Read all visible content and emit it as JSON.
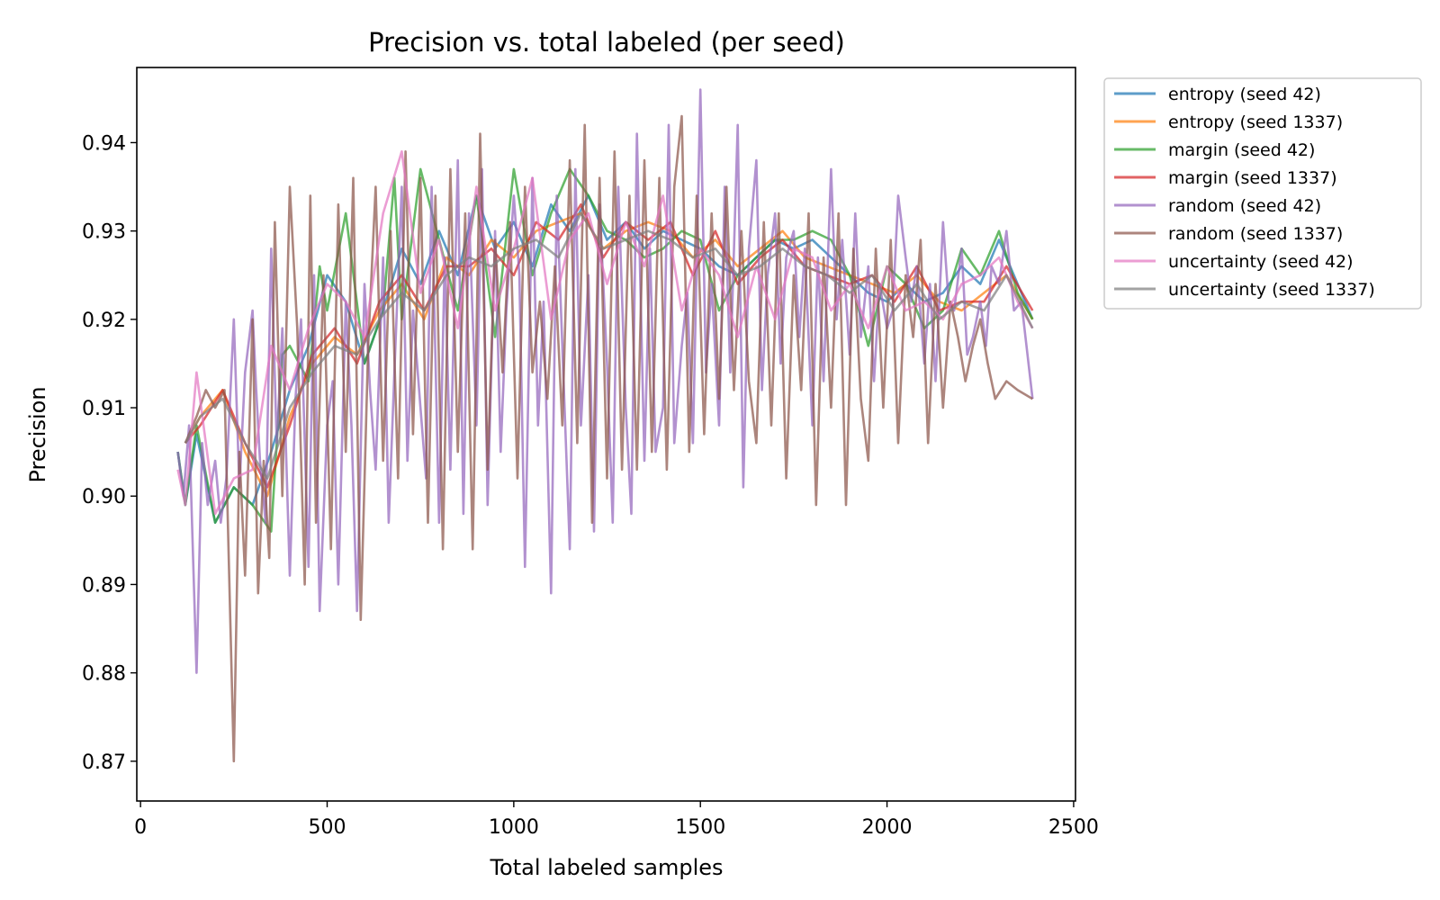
{
  "chart_data": {
    "type": "line",
    "title": "Precision vs. total labeled (per seed)",
    "xlabel": "Total labeled samples",
    "ylabel": "Precision",
    "xlim": [
      -10,
      2505
    ],
    "ylim": [
      0.8655,
      0.9485
    ],
    "xticks": [
      0,
      500,
      1000,
      1500,
      2000,
      2500
    ],
    "yticks": [
      0.87,
      0.88,
      0.89,
      0.9,
      0.91,
      0.92,
      0.93,
      0.94
    ],
    "ytick_format": 2,
    "grid": false,
    "legend_position": "outside-right",
    "series": [
      {
        "name": "entropy (seed 42)",
        "color": "#1f77b4",
        "x": [
          100,
          120,
          150,
          200,
          250,
          300,
          350,
          400,
          450,
          500,
          550,
          600,
          650,
          700,
          750,
          800,
          850,
          900,
          950,
          1000,
          1050,
          1100,
          1150,
          1200,
          1250,
          1300,
          1350,
          1400,
          1450,
          1500,
          1550,
          1600,
          1650,
          1700,
          1750,
          1800,
          1850,
          1900,
          1950,
          2000,
          2050,
          2100,
          2150,
          2200,
          2250,
          2300,
          2350,
          2390
        ],
        "y": [
          0.905,
          0.899,
          0.907,
          0.897,
          0.901,
          0.899,
          0.905,
          0.912,
          0.917,
          0.925,
          0.922,
          0.915,
          0.921,
          0.928,
          0.924,
          0.93,
          0.925,
          0.934,
          0.928,
          0.931,
          0.926,
          0.933,
          0.93,
          0.934,
          0.929,
          0.931,
          0.928,
          0.93,
          0.929,
          0.928,
          0.926,
          0.925,
          0.927,
          0.929,
          0.928,
          0.929,
          0.927,
          0.925,
          0.923,
          0.922,
          0.924,
          0.922,
          0.923,
          0.926,
          0.924,
          0.929,
          0.924,
          0.92
        ]
      },
      {
        "name": "entropy (seed 1337)",
        "color": "#ff7f0e",
        "x": [
          120,
          160,
          220,
          280,
          340,
          400,
          460,
          520,
          580,
          640,
          700,
          760,
          820,
          880,
          940,
          1000,
          1060,
          1120,
          1180,
          1240,
          1300,
          1360,
          1420,
          1480,
          1540,
          1600,
          1660,
          1720,
          1780,
          1840,
          1900,
          1960,
          2020,
          2080,
          2140,
          2200,
          2260,
          2320,
          2390
        ],
        "y": [
          0.906,
          0.909,
          0.912,
          0.905,
          0.9,
          0.909,
          0.915,
          0.918,
          0.916,
          0.921,
          0.924,
          0.92,
          0.927,
          0.925,
          0.929,
          0.927,
          0.93,
          0.931,
          0.932,
          0.928,
          0.93,
          0.931,
          0.93,
          0.927,
          0.929,
          0.926,
          0.928,
          0.93,
          0.927,
          0.926,
          0.925,
          0.924,
          0.923,
          0.925,
          0.922,
          0.921,
          0.923,
          0.925,
          0.92
        ]
      },
      {
        "name": "margin (seed 42)",
        "color": "#2ca02c",
        "x": [
          100,
          120,
          150,
          200,
          250,
          300,
          350,
          380,
          400,
          450,
          480,
          500,
          550,
          600,
          650,
          680,
          700,
          750,
          800,
          850,
          900,
          950,
          1000,
          1050,
          1100,
          1150,
          1200,
          1250,
          1300,
          1350,
          1400,
          1450,
          1500,
          1550,
          1600,
          1650,
          1700,
          1750,
          1800,
          1850,
          1900,
          1950,
          2000,
          2050,
          2100,
          2150,
          2200,
          2250,
          2300,
          2350,
          2390
        ],
        "y": [
          0.905,
          0.899,
          0.908,
          0.897,
          0.901,
          0.899,
          0.896,
          0.916,
          0.917,
          0.913,
          0.926,
          0.921,
          0.932,
          0.915,
          0.921,
          0.936,
          0.92,
          0.937,
          0.929,
          0.921,
          0.934,
          0.918,
          0.937,
          0.925,
          0.932,
          0.937,
          0.934,
          0.93,
          0.929,
          0.927,
          0.928,
          0.93,
          0.929,
          0.921,
          0.925,
          0.927,
          0.929,
          0.929,
          0.93,
          0.929,
          0.925,
          0.917,
          0.926,
          0.924,
          0.919,
          0.921,
          0.928,
          0.925,
          0.93,
          0.923,
          0.92
        ]
      },
      {
        "name": "margin (seed 1337)",
        "color": "#d62728",
        "x": [
          120,
          160,
          220,
          280,
          340,
          400,
          460,
          520,
          580,
          640,
          700,
          760,
          820,
          880,
          940,
          1000,
          1060,
          1120,
          1180,
          1240,
          1300,
          1360,
          1420,
          1480,
          1540,
          1600,
          1660,
          1720,
          1780,
          1840,
          1900,
          1960,
          2020,
          2080,
          2140,
          2200,
          2260,
          2320,
          2390
        ],
        "y": [
          0.906,
          0.908,
          0.912,
          0.906,
          0.901,
          0.908,
          0.916,
          0.919,
          0.915,
          0.922,
          0.925,
          0.921,
          0.926,
          0.926,
          0.928,
          0.925,
          0.931,
          0.929,
          0.933,
          0.927,
          0.931,
          0.929,
          0.931,
          0.925,
          0.93,
          0.924,
          0.927,
          0.929,
          0.926,
          0.925,
          0.924,
          0.925,
          0.922,
          0.926,
          0.921,
          0.922,
          0.922,
          0.926,
          0.921
        ]
      },
      {
        "name": "random (seed 42)",
        "color": "#9467bd",
        "x": [
          100,
          115,
          130,
          150,
          165,
          180,
          200,
          215,
          230,
          250,
          265,
          280,
          300,
          310,
          320,
          335,
          350,
          365,
          380,
          400,
          415,
          430,
          450,
          465,
          480,
          500,
          515,
          530,
          550,
          565,
          580,
          600,
          615,
          630,
          650,
          665,
          680,
          700,
          715,
          730,
          750,
          765,
          780,
          800,
          815,
          830,
          850,
          865,
          880,
          900,
          915,
          930,
          950,
          965,
          980,
          1000,
          1015,
          1030,
          1050,
          1065,
          1080,
          1100,
          1115,
          1130,
          1150,
          1165,
          1180,
          1200,
          1215,
          1230,
          1250,
          1265,
          1280,
          1300,
          1315,
          1330,
          1350,
          1365,
          1380,
          1400,
          1415,
          1430,
          1450,
          1465,
          1480,
          1500,
          1515,
          1530,
          1550,
          1565,
          1580,
          1600,
          1615,
          1630,
          1650,
          1665,
          1680,
          1700,
          1715,
          1730,
          1750,
          1765,
          1780,
          1800,
          1815,
          1830,
          1850,
          1865,
          1880,
          1900,
          1915,
          1930,
          1950,
          1965,
          1980,
          2000,
          2015,
          2030,
          2050,
          2065,
          2080,
          2100,
          2115,
          2130,
          2150,
          2165,
          2180,
          2200,
          2215,
          2230,
          2250,
          2265,
          2280,
          2300,
          2320,
          2340,
          2360,
          2390
        ],
        "y": [
          0.905,
          0.9,
          0.908,
          0.88,
          0.906,
          0.899,
          0.904,
          0.897,
          0.902,
          0.92,
          0.901,
          0.914,
          0.921,
          0.912,
          0.904,
          0.897,
          0.928,
          0.906,
          0.919,
          0.891,
          0.911,
          0.92,
          0.892,
          0.925,
          0.887,
          0.908,
          0.913,
          0.89,
          0.922,
          0.908,
          0.887,
          0.924,
          0.912,
          0.903,
          0.927,
          0.897,
          0.914,
          0.935,
          0.904,
          0.921,
          0.91,
          0.902,
          0.935,
          0.897,
          0.927,
          0.903,
          0.938,
          0.898,
          0.932,
          0.908,
          0.937,
          0.899,
          0.93,
          0.905,
          0.921,
          0.934,
          0.925,
          0.892,
          0.936,
          0.908,
          0.922,
          0.889,
          0.934,
          0.917,
          0.894,
          0.937,
          0.908,
          0.925,
          0.896,
          0.933,
          0.915,
          0.897,
          0.935,
          0.91,
          0.898,
          0.941,
          0.904,
          0.928,
          0.905,
          0.91,
          0.942,
          0.906,
          0.917,
          0.923,
          0.906,
          0.946,
          0.914,
          0.924,
          0.908,
          0.935,
          0.914,
          0.942,
          0.901,
          0.928,
          0.938,
          0.912,
          0.925,
          0.932,
          0.915,
          0.927,
          0.93,
          0.918,
          0.928,
          0.908,
          0.927,
          0.913,
          0.937,
          0.92,
          0.929,
          0.916,
          0.932,
          0.918,
          0.926,
          0.913,
          0.924,
          0.919,
          0.921,
          0.934,
          0.927,
          0.922,
          0.926,
          0.915,
          0.924,
          0.913,
          0.931,
          0.922,
          0.921,
          0.928,
          0.916,
          0.918,
          0.922,
          0.917,
          0.926,
          0.924,
          0.93,
          0.921,
          0.922,
          0.911
        ]
      },
      {
        "name": "random (seed 1337)",
        "color": "#8c564b",
        "x": [
          120,
          150,
          175,
          200,
          225,
          250,
          265,
          280,
          300,
          315,
          330,
          345,
          360,
          380,
          400,
          420,
          440,
          455,
          470,
          490,
          510,
          530,
          550,
          570,
          590,
          610,
          630,
          650,
          670,
          690,
          710,
          730,
          750,
          770,
          790,
          810,
          830,
          850,
          870,
          890,
          910,
          930,
          950,
          970,
          990,
          1010,
          1030,
          1050,
          1070,
          1090,
          1110,
          1130,
          1150,
          1170,
          1190,
          1210,
          1230,
          1250,
          1270,
          1290,
          1310,
          1330,
          1350,
          1370,
          1390,
          1410,
          1430,
          1450,
          1470,
          1490,
          1510,
          1530,
          1550,
          1570,
          1590,
          1610,
          1630,
          1650,
          1670,
          1690,
          1710,
          1730,
          1750,
          1770,
          1790,
          1810,
          1830,
          1850,
          1870,
          1890,
          1910,
          1930,
          1950,
          1970,
          1990,
          2010,
          2030,
          2050,
          2070,
          2090,
          2110,
          2130,
          2150,
          2170,
          2190,
          2210,
          2230,
          2250,
          2270,
          2290,
          2320,
          2350,
          2390
        ],
        "y": [
          0.906,
          0.909,
          0.912,
          0.91,
          0.912,
          0.87,
          0.905,
          0.891,
          0.92,
          0.889,
          0.904,
          0.893,
          0.931,
          0.9,
          0.935,
          0.919,
          0.89,
          0.934,
          0.897,
          0.925,
          0.894,
          0.933,
          0.905,
          0.936,
          0.886,
          0.917,
          0.935,
          0.904,
          0.93,
          0.902,
          0.939,
          0.907,
          0.936,
          0.897,
          0.934,
          0.894,
          0.937,
          0.905,
          0.932,
          0.894,
          0.941,
          0.903,
          0.929,
          0.914,
          0.931,
          0.902,
          0.935,
          0.914,
          0.922,
          0.911,
          0.926,
          0.908,
          0.938,
          0.906,
          0.942,
          0.897,
          0.936,
          0.902,
          0.939,
          0.903,
          0.934,
          0.903,
          0.938,
          0.905,
          0.936,
          0.903,
          0.935,
          0.943,
          0.905,
          0.934,
          0.907,
          0.932,
          0.911,
          0.935,
          0.912,
          0.93,
          0.913,
          0.906,
          0.931,
          0.908,
          0.932,
          0.902,
          0.925,
          0.912,
          0.932,
          0.899,
          0.927,
          0.91,
          0.932,
          0.899,
          0.928,
          0.911,
          0.904,
          0.928,
          0.91,
          0.929,
          0.906,
          0.925,
          0.918,
          0.929,
          0.906,
          0.924,
          0.91,
          0.922,
          0.918,
          0.913,
          0.917,
          0.92,
          0.915,
          0.911,
          0.913,
          0.912,
          0.911
        ]
      },
      {
        "name": "uncertainty (seed 42)",
        "color": "#e377c2",
        "x": [
          100,
          120,
          150,
          200,
          250,
          300,
          350,
          400,
          450,
          500,
          550,
          600,
          650,
          700,
          750,
          800,
          850,
          900,
          950,
          1000,
          1050,
          1100,
          1150,
          1200,
          1250,
          1300,
          1350,
          1400,
          1450,
          1500,
          1550,
          1600,
          1650,
          1700,
          1750,
          1800,
          1850,
          1900,
          1950,
          2000,
          2050,
          2100,
          2150,
          2200,
          2250,
          2300,
          2350,
          2390
        ],
        "y": [
          0.903,
          0.899,
          0.914,
          0.898,
          0.902,
          0.903,
          0.917,
          0.912,
          0.919,
          0.924,
          0.922,
          0.918,
          0.932,
          0.939,
          0.923,
          0.929,
          0.919,
          0.935,
          0.921,
          0.928,
          0.936,
          0.92,
          0.929,
          0.932,
          0.924,
          0.931,
          0.926,
          0.934,
          0.921,
          0.928,
          0.925,
          0.918,
          0.926,
          0.92,
          0.928,
          0.927,
          0.921,
          0.924,
          0.919,
          0.926,
          0.921,
          0.922,
          0.92,
          0.924,
          0.925,
          0.927,
          0.922,
          0.919
        ]
      },
      {
        "name": "uncertainty (seed 1337)",
        "color": "#7f7f7f",
        "x": [
          120,
          160,
          220,
          280,
          340,
          400,
          460,
          520,
          580,
          640,
          700,
          760,
          820,
          880,
          940,
          1000,
          1060,
          1120,
          1180,
          1240,
          1300,
          1360,
          1420,
          1480,
          1540,
          1600,
          1660,
          1720,
          1780,
          1840,
          1900,
          1960,
          2020,
          2080,
          2140,
          2200,
          2260,
          2320,
          2390
        ],
        "y": [
          0.906,
          0.909,
          0.911,
          0.906,
          0.902,
          0.91,
          0.914,
          0.917,
          0.916,
          0.92,
          0.923,
          0.921,
          0.925,
          0.927,
          0.926,
          0.928,
          0.929,
          0.927,
          0.932,
          0.928,
          0.929,
          0.93,
          0.929,
          0.927,
          0.928,
          0.925,
          0.926,
          0.928,
          0.926,
          0.925,
          0.923,
          0.925,
          0.921,
          0.924,
          0.92,
          0.922,
          0.921,
          0.925,
          0.919
        ]
      }
    ]
  }
}
